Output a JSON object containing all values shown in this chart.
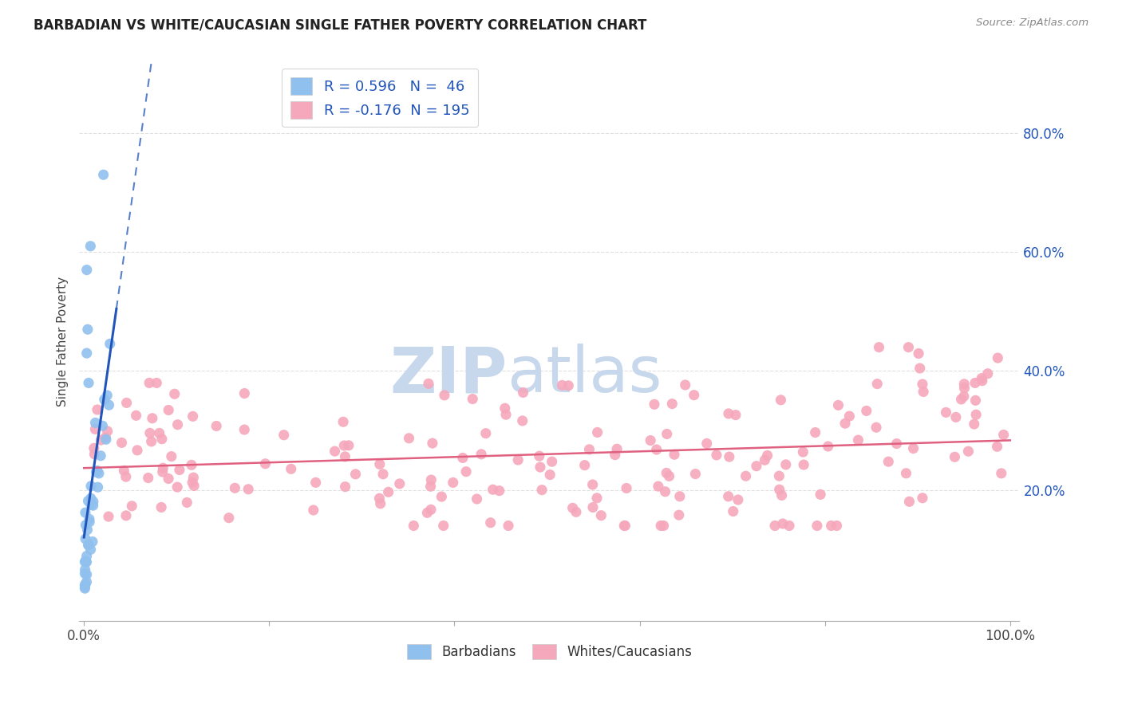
{
  "title": "BARBADIAN VS WHITE/CAUCASIAN SINGLE FATHER POVERTY CORRELATION CHART",
  "source": "Source: ZipAtlas.com",
  "ylabel": "Single Father Poverty",
  "ytick_positions": [
    0.2,
    0.4,
    0.6,
    0.8
  ],
  "ytick_labels": [
    "20.0%",
    "40.0%",
    "60.0%",
    "80.0%"
  ],
  "xtick_positions": [
    0.0,
    0.2,
    0.4,
    0.6,
    0.8,
    1.0
  ],
  "xtick_labels": [
    "0.0%",
    "",
    "",
    "",
    "",
    "100.0%"
  ],
  "barbadian_R": 0.596,
  "barbadian_N": 46,
  "white_R": -0.176,
  "white_N": 195,
  "legend_label_1": "Barbadians",
  "legend_label_2": "Whites/Caucasians",
  "blue_scatter_color": "#90C0EE",
  "pink_scatter_color": "#F5A8BC",
  "blue_line_color": "#2255BB",
  "pink_line_color": "#E06080",
  "legend_text_color": "#2255BB",
  "background_color": "#FFFFFF",
  "watermark_zip": "ZIP",
  "watermark_atlas": "atlas",
  "watermark_color": "#C8D8EC",
  "seed": 42,
  "ylim_min": -0.02,
  "ylim_max": 0.92,
  "xlim_min": -0.005,
  "xlim_max": 1.01
}
